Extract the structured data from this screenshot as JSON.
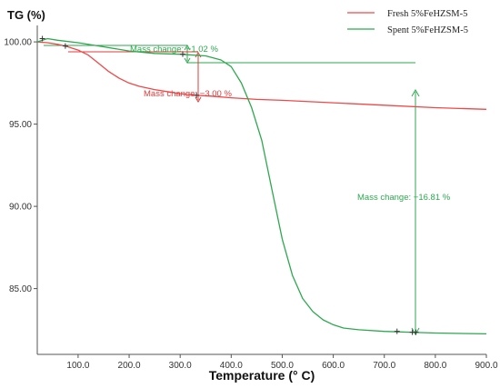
{
  "chart_data": {
    "type": "line",
    "ylabel": "TG (%)",
    "xlabel": "Temperature (° C)",
    "xlim": [
      20,
      900
    ],
    "ylim": [
      81,
      101
    ],
    "xticks": [
      100,
      200,
      300,
      400,
      500,
      600,
      700,
      800,
      900
    ],
    "xtick_labels": [
      "100.0",
      "200.0",
      "300.0",
      "400.0",
      "500.0",
      "600.0",
      "700.0",
      "800.0",
      "900.0"
    ],
    "yticks": [
      100,
      95,
      90,
      85
    ],
    "ytick_labels": [
      "100.00",
      "95.00",
      "90.00",
      "85.00"
    ],
    "grid": false,
    "legend_position": "top-right",
    "series": [
      {
        "name": "Fresh 5%FeHZSM-5",
        "color": "#f04848",
        "x": [
          20,
          40,
          60,
          80,
          100,
          120,
          140,
          160,
          180,
          200,
          220,
          250,
          280,
          300,
          330,
          360,
          400,
          450,
          500,
          600,
          700,
          800,
          900
        ],
        "y": [
          100.0,
          99.95,
          99.85,
          99.7,
          99.5,
          99.2,
          98.7,
          98.2,
          97.8,
          97.5,
          97.3,
          97.1,
          96.95,
          96.85,
          96.75,
          96.7,
          96.6,
          96.5,
          96.45,
          96.3,
          96.15,
          96.0,
          95.9
        ]
      },
      {
        "name": "Spent 5%FeHZSM-5",
        "color": "#2ea84f",
        "x": [
          20,
          40,
          60,
          100,
          150,
          200,
          250,
          300,
          350,
          380,
          400,
          420,
          440,
          460,
          480,
          500,
          520,
          540,
          560,
          580,
          600,
          620,
          650,
          700,
          750,
          800,
          900
        ],
        "y": [
          100.0,
          100.2,
          100.1,
          99.95,
          99.7,
          99.45,
          99.3,
          99.25,
          99.15,
          98.9,
          98.5,
          97.5,
          96.0,
          94.0,
          91.0,
          88.0,
          85.8,
          84.4,
          83.6,
          83.1,
          82.8,
          82.6,
          82.5,
          82.4,
          82.35,
          82.3,
          82.25
        ]
      }
    ],
    "markers": [
      {
        "series": 0,
        "x": 75,
        "y": 99.75
      },
      {
        "series": 0,
        "x": 332,
        "y": 96.75
      },
      {
        "series": 1,
        "x": 30,
        "y": 100.2
      },
      {
        "series": 1,
        "x": 305,
        "y": 99.25
      },
      {
        "series": 1,
        "x": 725,
        "y": 82.4
      },
      {
        "series": 1,
        "x": 755,
        "y": 82.35
      },
      {
        "series": 1,
        "x": 762,
        "y": 82.35
      }
    ],
    "annotations": [
      {
        "text": "Mass change: −1.02 %",
        "color": "#2ea84f"
      },
      {
        "text": "Mass change: −3.00 %",
        "color": "#e23b3b"
      },
      {
        "text": "Mass change: −16.81 %",
        "color": "#2ea84f"
      }
    ]
  }
}
